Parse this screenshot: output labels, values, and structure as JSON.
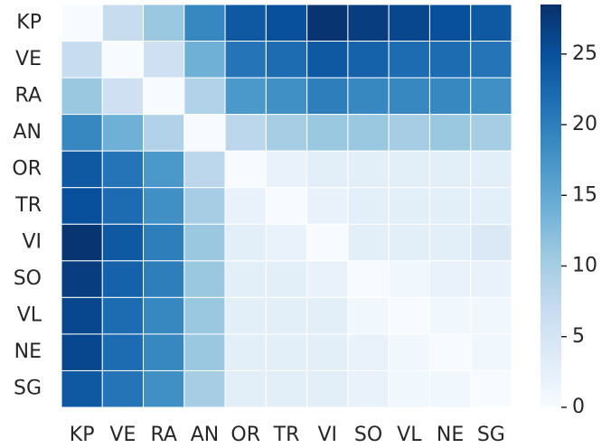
{
  "chart_data": {
    "type": "heatmap",
    "rows": [
      "KP",
      "VE",
      "RA",
      "AN",
      "OR",
      "TR",
      "VI",
      "SO",
      "VL",
      "NE",
      "SG"
    ],
    "columns": [
      "KP",
      "VE",
      "RA",
      "AN",
      "OR",
      "TR",
      "VI",
      "SO",
      "VL",
      "NE",
      "SG"
    ],
    "values": [
      [
        0,
        7,
        11,
        19,
        24,
        25,
        28,
        27,
        26,
        25,
        24
      ],
      [
        7,
        0,
        6,
        14,
        21,
        22,
        24,
        23,
        22,
        22,
        21
      ],
      [
        11,
        6,
        0,
        9,
        17,
        18,
        20,
        19,
        19,
        19,
        18
      ],
      [
        19,
        14,
        9,
        0,
        8,
        10,
        11,
        11,
        10,
        11,
        10
      ],
      [
        24,
        21,
        17,
        8,
        0,
        2,
        3,
        3,
        3,
        3,
        3
      ],
      [
        25,
        22,
        18,
        10,
        2,
        0,
        2,
        3,
        3,
        3,
        3
      ],
      [
        28,
        24,
        20,
        11,
        3,
        2,
        0,
        3,
        3,
        3,
        4
      ],
      [
        27,
        23,
        20,
        11,
        3,
        3,
        2,
        0,
        1,
        2,
        2
      ],
      [
        26,
        22,
        19,
        11,
        3,
        3,
        3,
        1,
        0,
        1,
        1
      ],
      [
        26,
        22,
        19,
        11,
        3,
        3,
        3,
        2,
        1,
        0,
        1
      ],
      [
        24,
        21,
        18,
        10,
        3,
        3,
        3,
        2,
        1,
        1,
        0
      ]
    ],
    "zlim": [
      0,
      28.5
    ],
    "zticks": [
      0,
      5,
      10,
      15,
      20,
      25
    ],
    "colormap": [
      "#f7fbff",
      "#deebf7",
      "#c6dbef",
      "#9ecae1",
      "#6baed6",
      "#4292c6",
      "#2171b5",
      "#08519c",
      "#08306b"
    ]
  }
}
